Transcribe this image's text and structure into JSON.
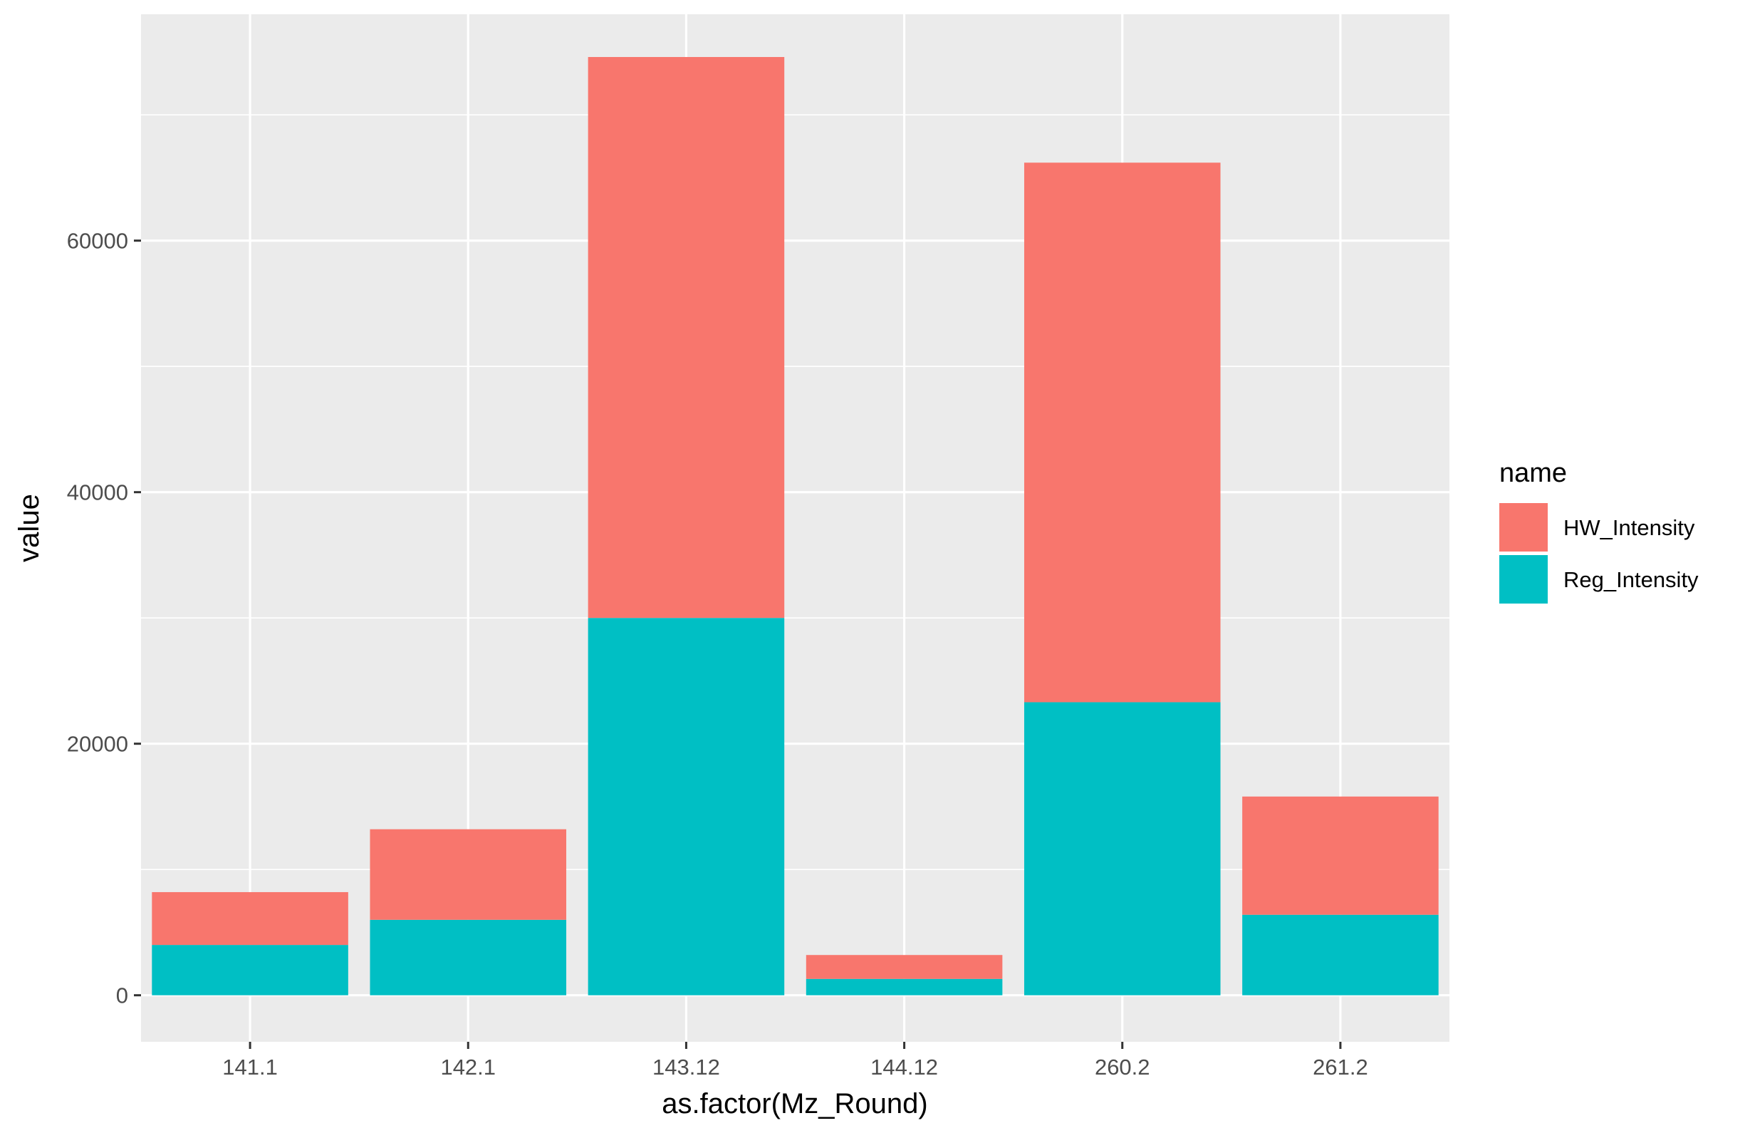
{
  "chart_data": {
    "type": "bar",
    "stacked": true,
    "title": "",
    "xlabel": "as.factor(Mz_Round)",
    "ylabel": "value",
    "categories": [
      "141.1",
      "142.1",
      "143.12",
      "144.12",
      "260.2",
      "261.2"
    ],
    "series": [
      {
        "name": "Reg_Intensity",
        "color": "#00BFC4",
        "values": [
          4000,
          6000,
          30000,
          1300,
          23300,
          6400
        ]
      },
      {
        "name": "HW_Intensity",
        "color": "#F8766D",
        "values": [
          4200,
          7200,
          44600,
          1900,
          42900,
          9400
        ]
      }
    ],
    "ylim": [
      -3700,
      78000
    ],
    "yticks": [
      0,
      20000,
      40000,
      60000
    ],
    "ytick_labels": [
      "0",
      "20000",
      "40000",
      "60000"
    ],
    "grid": true,
    "panel_background": "#EBEBEB",
    "grid_color": "#FFFFFF",
    "legend": {
      "title": "name",
      "placement": "right",
      "entries": [
        "HW_Intensity",
        "Reg_Intensity"
      ]
    }
  }
}
